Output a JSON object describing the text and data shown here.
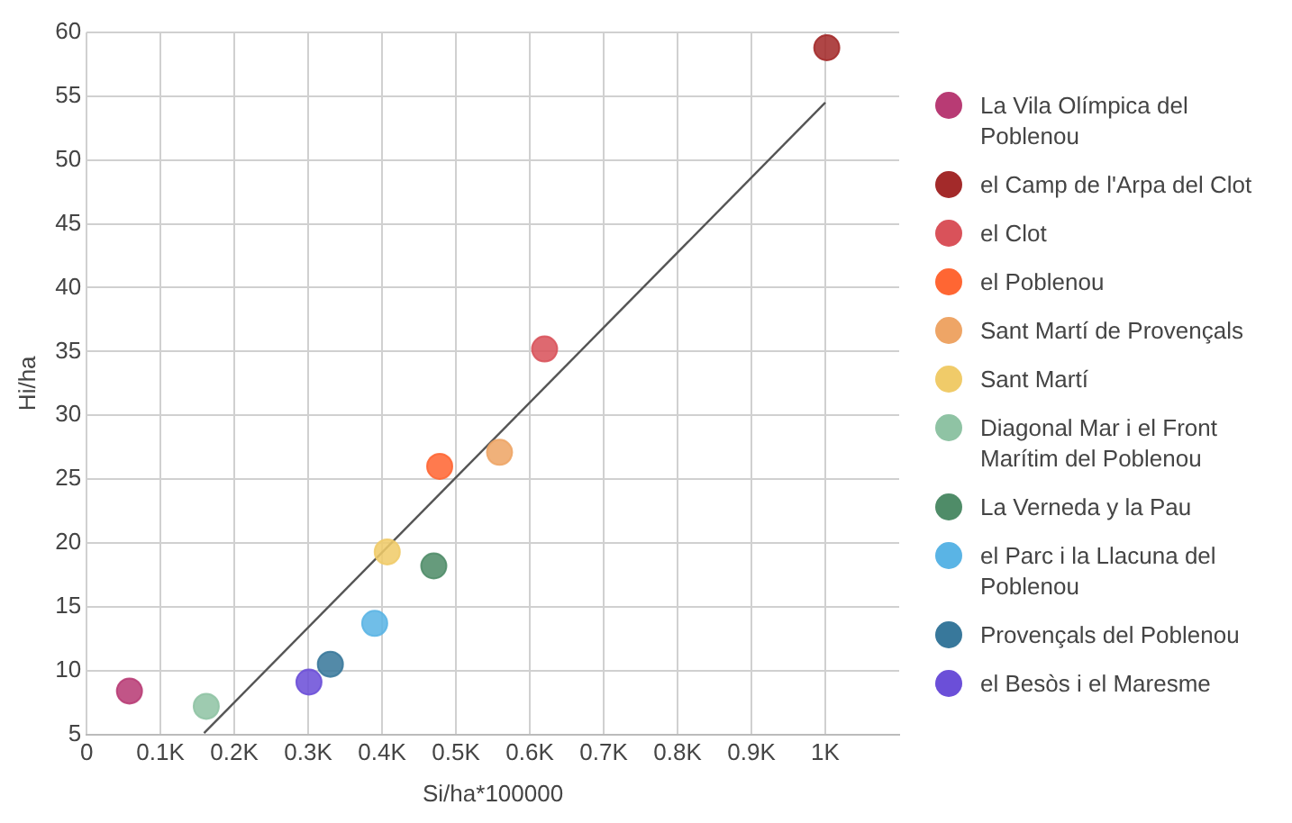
{
  "chart_data": {
    "type": "scatter",
    "xlabel": "Si/ha*100000",
    "ylabel": "Hi/ha",
    "xlim": [
      0,
      1100
    ],
    "ylim": [
      5,
      60
    ],
    "xticks": [
      0,
      {
        "value": 100,
        "label": "0.1K"
      },
      {
        "value": 200,
        "label": "0.2K"
      },
      {
        "value": 300,
        "label": "0.3K"
      },
      {
        "value": 400,
        "label": "0.4K"
      },
      {
        "value": 500,
        "label": "0.5K"
      },
      {
        "value": 600,
        "label": "0.6K"
      },
      {
        "value": 700,
        "label": "0.7K"
      },
      {
        "value": 800,
        "label": "0.8K"
      },
      {
        "value": 900,
        "label": "0.9K"
      },
      {
        "value": 1000,
        "label": "1K"
      }
    ],
    "yticks": [
      5,
      10,
      15,
      20,
      25,
      30,
      35,
      40,
      45,
      50,
      55,
      60
    ],
    "grid": true,
    "legend": "right",
    "marker": "circle",
    "series": [
      {
        "name": "La Vila Olímpica del Poblenou",
        "color": "#b83b74",
        "x": [
          58
        ],
        "values": [
          8.4
        ]
      },
      {
        "name": "el Camp de l'Arpa del Clot",
        "color": "#a32a2a",
        "x": [
          1002
        ],
        "values": [
          58.8
        ]
      },
      {
        "name": "el Clot",
        "color": "#d9525a",
        "x": [
          620
        ],
        "values": [
          35.2
        ]
      },
      {
        "name": "el Poblenou",
        "color": "#ff6633",
        "x": [
          478
        ],
        "values": [
          26
        ]
      },
      {
        "name": "Sant Martí de Provençals",
        "color": "#eea566",
        "x": [
          559
        ],
        "values": [
          27.1
        ]
      },
      {
        "name": "Sant Martí",
        "color": "#f0cb69",
        "x": [
          407
        ],
        "values": [
          19.3
        ]
      },
      {
        "name": "Diagonal Mar i el Front Marítim del Poblenou",
        "color": "#8fc3a4",
        "x": [
          162
        ],
        "values": [
          7.2
        ]
      },
      {
        "name": "La Verneda y la Pau",
        "color": "#4f8c68",
        "x": [
          470
        ],
        "values": [
          18.2
        ]
      },
      {
        "name": "el Parc i la Llacuna del Poblenou",
        "color": "#5ab4e5",
        "x": [
          390
        ],
        "values": [
          13.7
        ]
      },
      {
        "name": "Provençals del Poblenou",
        "color": "#38789b",
        "x": [
          330
        ],
        "values": [
          10.5
        ]
      },
      {
        "name": "el Besòs i el Maresme",
        "color": "#6b4fd8",
        "x": [
          301
        ],
        "values": [
          9.1
        ]
      },
      {
        "type": "line",
        "color": "#555555",
        "x": [
          159,
          1000
        ],
        "values": [
          5.1,
          54.5
        ],
        "marker": "none"
      }
    ]
  }
}
